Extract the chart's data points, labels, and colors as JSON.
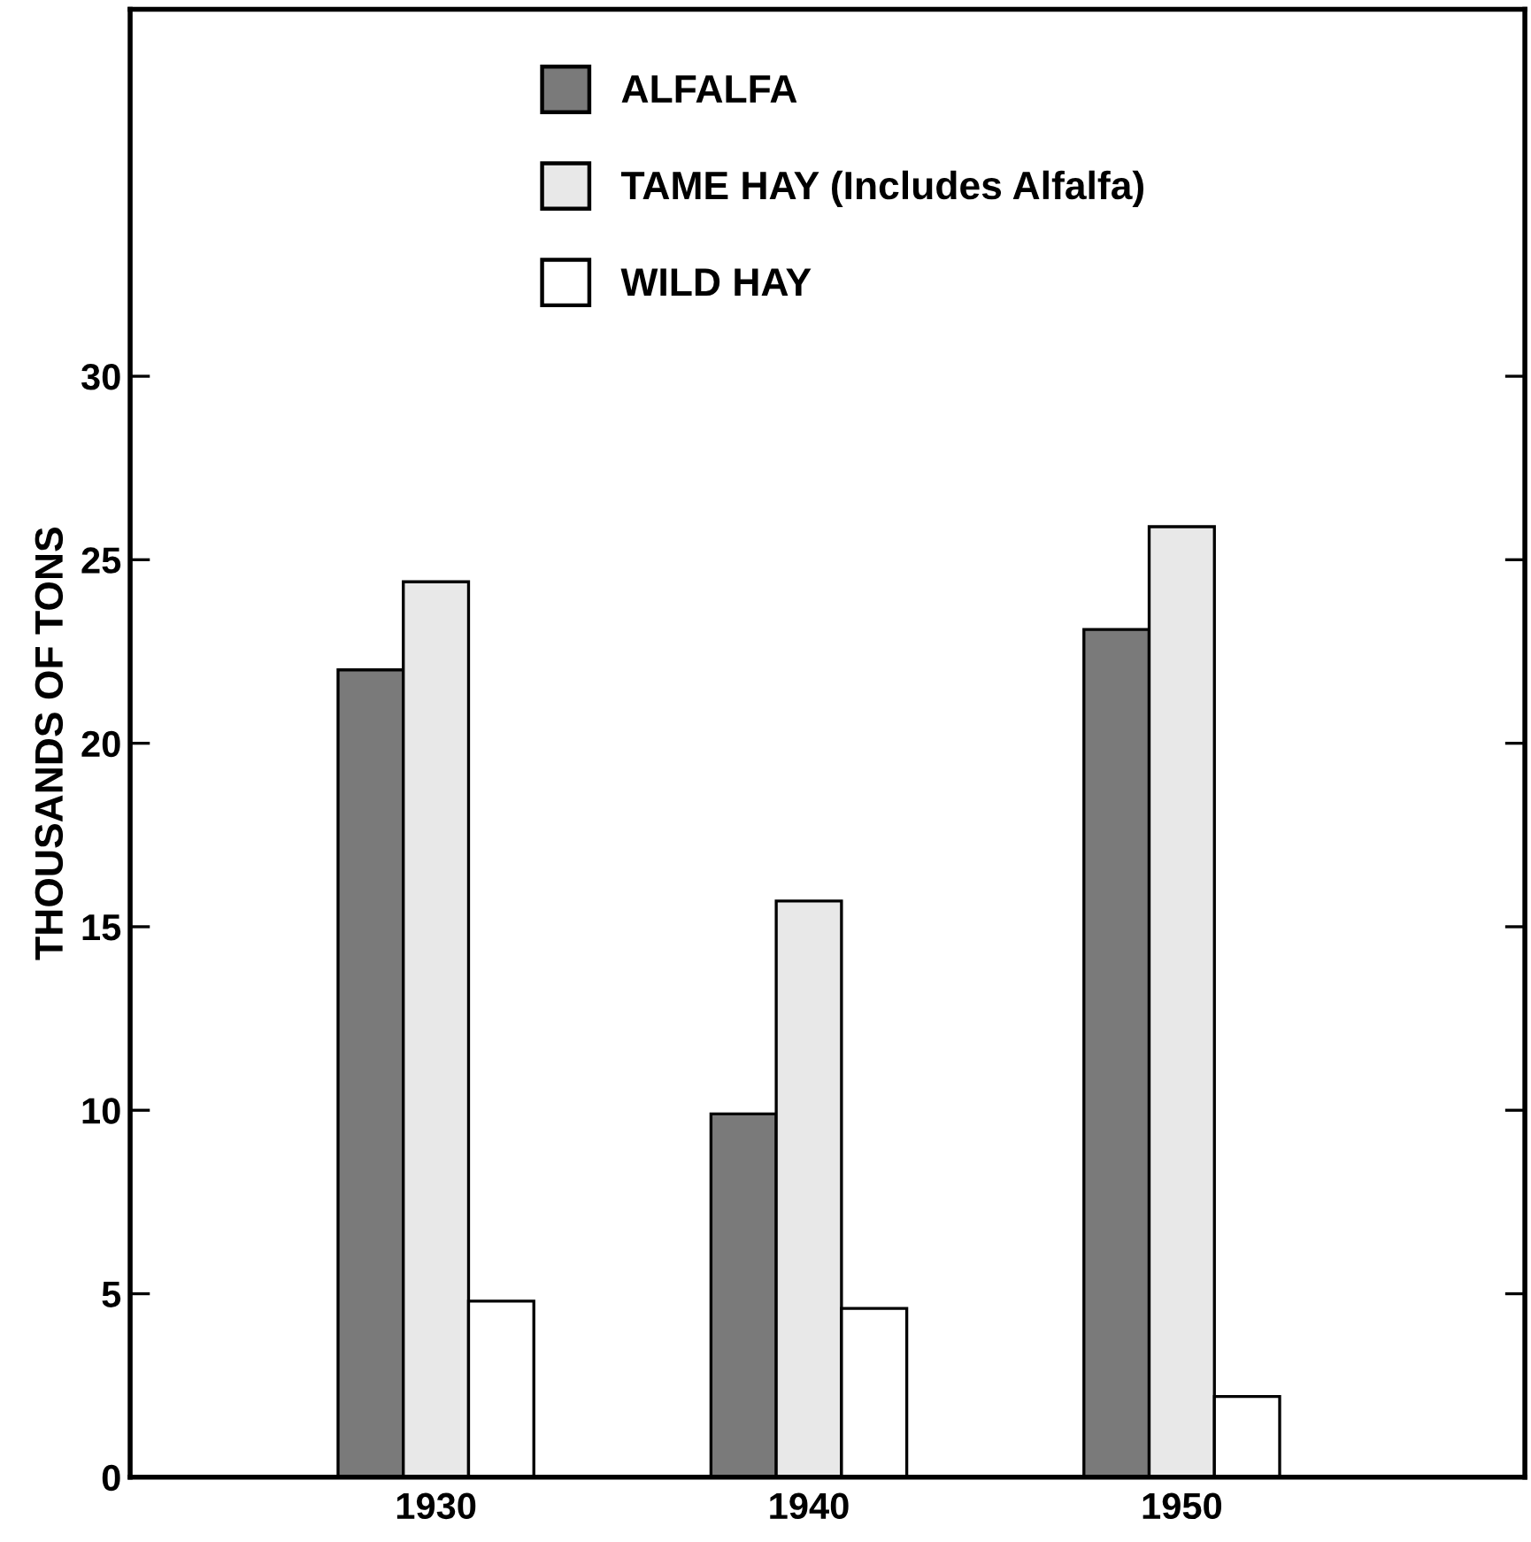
{
  "chart_data": {
    "type": "bar",
    "ylabel": "THOUSANDS OF TONS",
    "categories": [
      "1930",
      "1940",
      "1950"
    ],
    "series": [
      {
        "name": "ALFALFA",
        "color": "#7a7a7a",
        "values": [
          22.0,
          9.9,
          23.1
        ]
      },
      {
        "name": "TAME HAY (Includes Alfalfa)",
        "color": "#e8e8e8",
        "values": [
          24.4,
          15.7,
          25.9
        ]
      },
      {
        "name": "WILD HAY",
        "color": "#ffffff",
        "values": [
          4.8,
          4.6,
          2.2
        ]
      }
    ],
    "ylim": [
      0,
      40
    ],
    "yticks": [
      0,
      5,
      10,
      15,
      20,
      25,
      30
    ],
    "grid": false,
    "legend": "top"
  }
}
